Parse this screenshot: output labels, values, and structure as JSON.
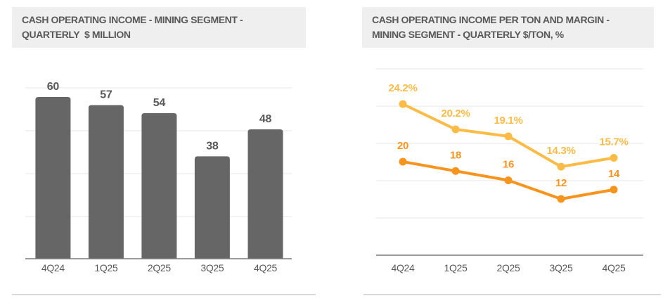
{
  "left_panel": {
    "title_lines": [
      "CASH OPERATING INCOME - MINING SEGMENT -",
      "QUARTERLY  $ MILLION"
    ]
  },
  "right_panel": {
    "title_lines": [
      "CASH OPERATING INCOME PER TON AND MARGIN -",
      "MINING SEGMENT - QUARTERLY $/TON, %"
    ]
  },
  "chart_data": [
    {
      "type": "bar",
      "title": "CASH OPERATING INCOME - MINING SEGMENT - QUARTERLY $ MILLION",
      "categories": [
        "4Q24",
        "1Q25",
        "2Q25",
        "3Q25",
        "4Q25"
      ],
      "values": [
        60,
        57,
        54,
        38,
        48
      ],
      "data_labels": [
        "60",
        "57",
        "54",
        "38",
        "48"
      ],
      "xlabel": "",
      "ylabel": "$ million",
      "ylim": [
        0,
        65
      ],
      "grid": true,
      "legend": "none",
      "bar_color": "#666666",
      "label_color": "#595959"
    },
    {
      "type": "line",
      "title": "CASH OPERATING INCOME PER TON AND MARGIN - MINING SEGMENT - QUARTERLY $/TON, %",
      "categories": [
        "4Q24",
        "1Q25",
        "2Q25",
        "3Q25",
        "4Q25"
      ],
      "series": [
        {
          "name": "margin-percent",
          "unit": "%",
          "axis": "percent",
          "values": [
            24.2,
            20.2,
            19.1,
            14.3,
            15.7
          ],
          "data_labels": [
            "24.2%",
            "20.2%",
            "19.1%",
            "14.3%",
            "15.7%"
          ],
          "color": "#FBBC47"
        },
        {
          "name": "income-per-ton",
          "unit": "$/ton",
          "axis": "dollars",
          "values": [
            20,
            18,
            16,
            12,
            14
          ],
          "data_labels": [
            "20",
            "18",
            "16",
            "12",
            "14"
          ],
          "color": "#F7941E"
        }
      ],
      "grid": true,
      "legend": "none"
    }
  ],
  "colors": {
    "title_background": "#EFEFEF",
    "text": "#595959",
    "bar": "#666666",
    "margin_line": "#FBBC47",
    "income_line": "#F7941E",
    "gridline": "#E7E7E7",
    "axis_line": "#7A7A7A",
    "separator": "#D9D9D9"
  }
}
